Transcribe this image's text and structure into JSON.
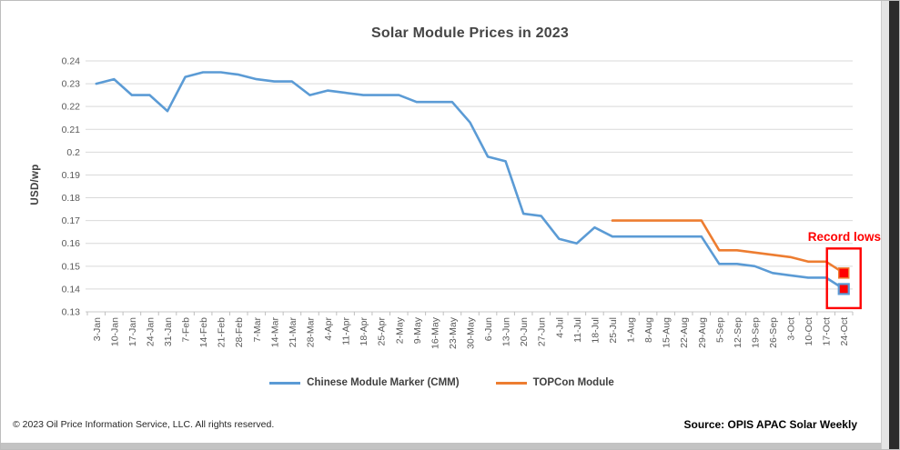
{
  "footer": {
    "copyright": "© 2023 Oil Price Information Service, LLC. All rights reserved.",
    "source": "Source: OPIS APAC Solar Weekly"
  },
  "chart_data": {
    "type": "line",
    "title": "Solar Module Prices in 2023",
    "xlabel": "",
    "ylabel": "USD/wp",
    "ylim": [
      0.13,
      0.24
    ],
    "ytick_step": 0.01,
    "ytick_labels": [
      "0.24",
      "0.23",
      "0.22",
      "0.21",
      "0.2",
      "0.19",
      "0.18",
      "0.17",
      "0.16",
      "0.15",
      "0.14",
      "0.13"
    ],
    "grid": true,
    "legend_position": "bottom",
    "categories": [
      "3-Jan",
      "10-Jan",
      "17-Jan",
      "24-Jan",
      "31-Jan",
      "7-Feb",
      "14-Feb",
      "21-Feb",
      "28-Feb",
      "7-Mar",
      "14-Mar",
      "21-Mar",
      "28-Mar",
      "4-Apr",
      "11-Apr",
      "18-Apr",
      "25-Apr",
      "2-May",
      "9-May",
      "16-May",
      "23-May",
      "30-May",
      "6-Jun",
      "13-Jun",
      "20-Jun",
      "27-Jun",
      "4-Jul",
      "11-Jul",
      "18-Jul",
      "25-Jul",
      "1-Aug",
      "8-Aug",
      "15-Aug",
      "22-Aug",
      "29-Aug",
      "5-Sep",
      "12-Sep",
      "19-Sep",
      "26-Sep",
      "3-Oct",
      "10-Oct",
      "17-Oct",
      "24-Oct"
    ],
    "series": [
      {
        "name": "Chinese Module Marker (CMM)",
        "color": "#5B9BD5",
        "values": [
          0.23,
          0.232,
          0.225,
          0.225,
          0.218,
          0.233,
          0.235,
          0.235,
          0.234,
          0.232,
          0.231,
          0.231,
          0.225,
          0.227,
          0.226,
          0.225,
          0.225,
          0.225,
          0.222,
          0.222,
          0.222,
          0.213,
          0.198,
          0.196,
          0.173,
          0.172,
          0.162,
          0.16,
          0.167,
          0.163,
          0.163,
          0.163,
          0.163,
          0.163,
          0.163,
          0.151,
          0.151,
          0.15,
          0.147,
          0.146,
          0.145,
          0.145,
          0.14
        ]
      },
      {
        "name": "TOPCon Module",
        "color": "#ED7D31",
        "values": [
          null,
          null,
          null,
          null,
          null,
          null,
          null,
          null,
          null,
          null,
          null,
          null,
          null,
          null,
          null,
          null,
          null,
          null,
          null,
          null,
          null,
          null,
          null,
          null,
          null,
          null,
          null,
          null,
          null,
          0.17,
          0.17,
          0.17,
          0.17,
          0.17,
          0.17,
          0.157,
          0.157,
          0.156,
          0.155,
          0.154,
          0.152,
          0.152,
          0.147
        ]
      }
    ],
    "annotation": {
      "label": "Record lows",
      "color": "#FF0000",
      "marker_fill": "#FF0000",
      "highlight_points": [
        {
          "series": "TOPCon Module",
          "category": "24-Oct",
          "value": 0.147
        },
        {
          "series": "Chinese Module Marker (CMM)",
          "category": "24-Oct",
          "value": 0.14
        }
      ]
    }
  }
}
